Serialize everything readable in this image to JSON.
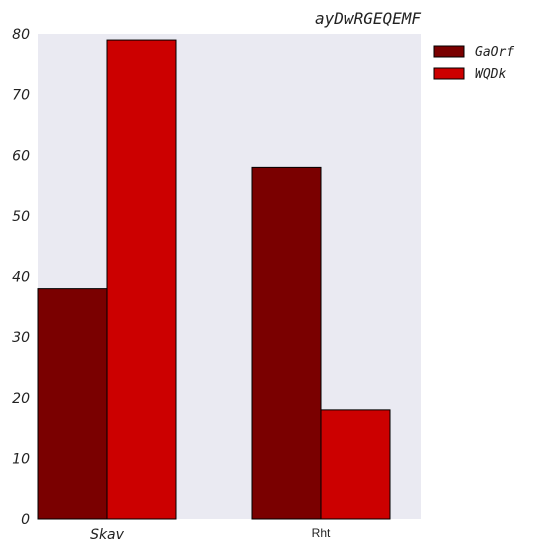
{
  "chart_data": {
    "type": "bar",
    "title": "ayDwRGEQEMF",
    "xlabel": "",
    "ylabel": "",
    "categories": [
      "Skav",
      "Rht"
    ],
    "series": [
      {
        "name": "GaOrf",
        "values": [
          38,
          58
        ],
        "color": "#7a0000"
      },
      {
        "name": "WQDk",
        "values": [
          79,
          18
        ],
        "color": "#cc0000"
      }
    ],
    "ylim": [
      0,
      80
    ],
    "yticks": [
      "0",
      "10",
      "20",
      "30",
      "40",
      "50",
      "60",
      "70",
      "80"
    ],
    "grid": false,
    "legend_placement": "outside-top-right",
    "plot_background": "#eaeaf2"
  }
}
